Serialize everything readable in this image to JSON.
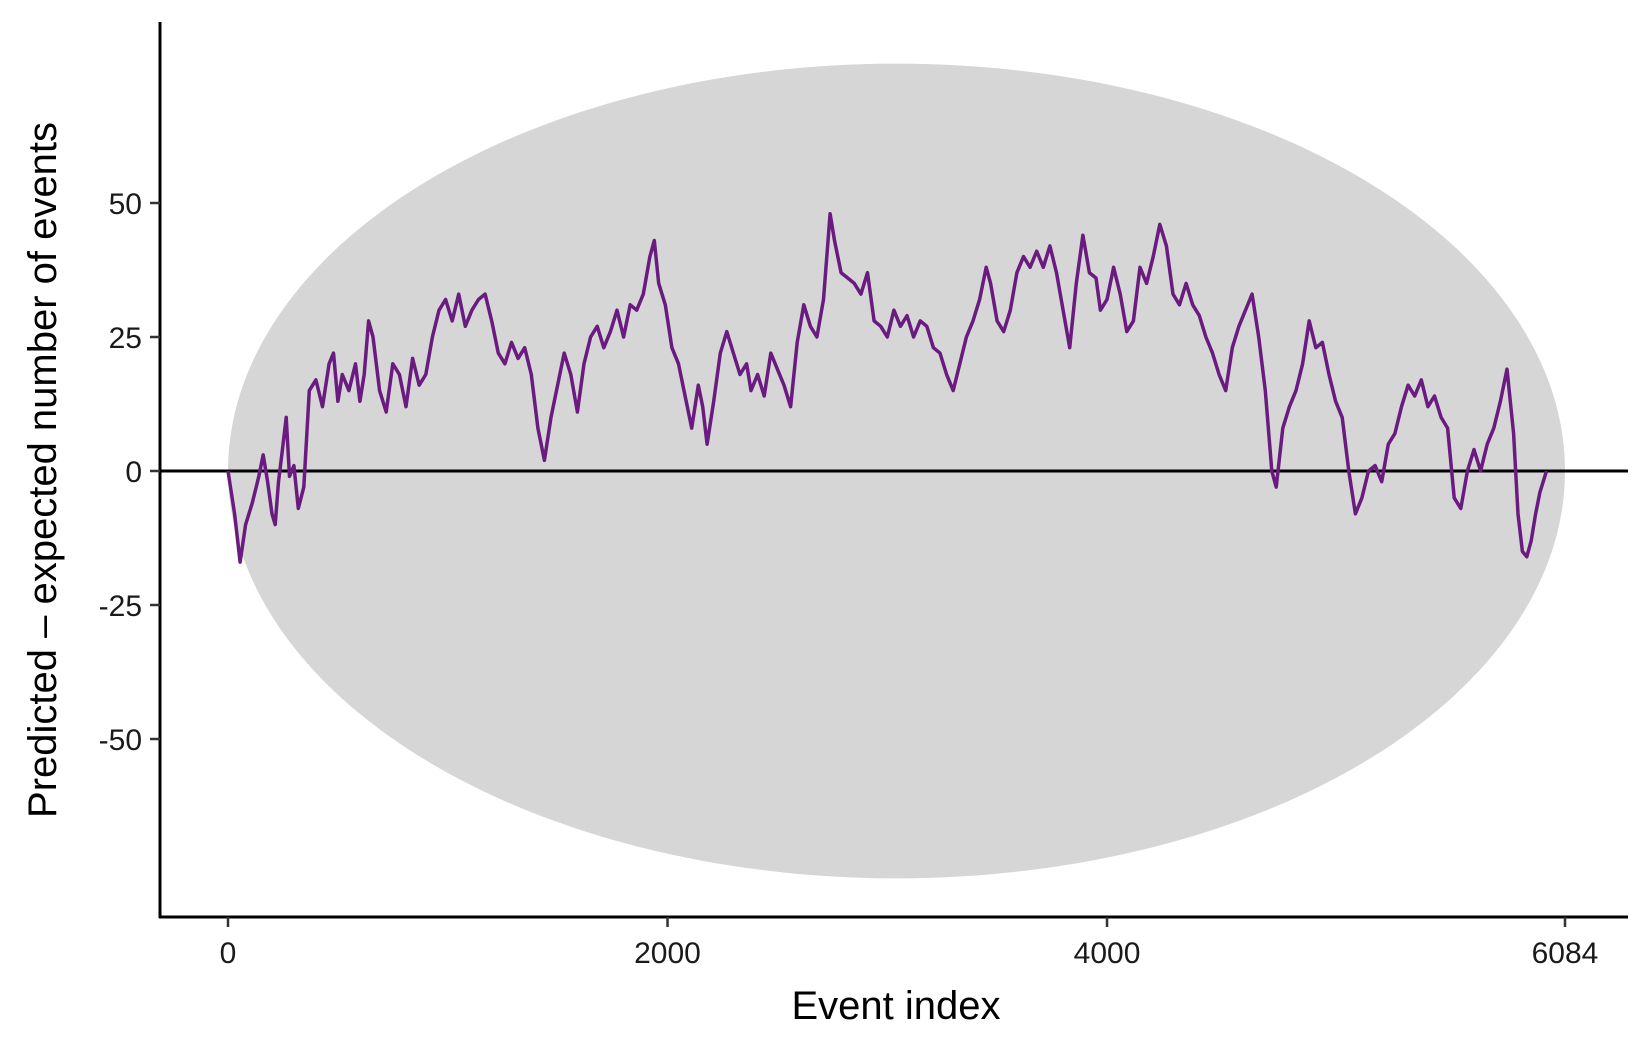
{
  "chart_data": {
    "type": "line",
    "xlabel": "Event index",
    "ylabel": "Predicted – expected number of events",
    "xlim": [
      -150,
      6084
    ],
    "ylim": [
      -84,
      84
    ],
    "x_ticks": [
      0,
      2000,
      4000,
      6084
    ],
    "x_tick_labels": [
      "0",
      "2000",
      "4000",
      "6084"
    ],
    "y_ticks": [
      -50,
      -25,
      0,
      25,
      50
    ],
    "y_tick_labels": [
      "-50",
      "-25",
      "0",
      "25",
      "50"
    ],
    "reference_line_y": 0,
    "confidence_region": {
      "shape": "ellipse",
      "x_range": [
        0,
        6084
      ],
      "y_range": [
        -76,
        76
      ]
    },
    "series": [
      {
        "color": "#6a1b7f",
        "points": [
          [
            0,
            0
          ],
          [
            30,
            -8
          ],
          [
            55,
            -17
          ],
          [
            80,
            -10
          ],
          [
            110,
            -6
          ],
          [
            140,
            -1
          ],
          [
            160,
            3
          ],
          [
            180,
            -2
          ],
          [
            200,
            -8
          ],
          [
            215,
            -10
          ],
          [
            230,
            -2
          ],
          [
            245,
            3
          ],
          [
            265,
            10
          ],
          [
            280,
            -1
          ],
          [
            300,
            1
          ],
          [
            320,
            -7
          ],
          [
            345,
            -3
          ],
          [
            370,
            15
          ],
          [
            400,
            17
          ],
          [
            430,
            12
          ],
          [
            460,
            20
          ],
          [
            480,
            22
          ],
          [
            500,
            13
          ],
          [
            520,
            18
          ],
          [
            550,
            15
          ],
          [
            580,
            20
          ],
          [
            600,
            13
          ],
          [
            620,
            18
          ],
          [
            640,
            28
          ],
          [
            660,
            25
          ],
          [
            690,
            15
          ],
          [
            720,
            11
          ],
          [
            750,
            20
          ],
          [
            780,
            18
          ],
          [
            810,
            12
          ],
          [
            840,
            21
          ],
          [
            870,
            16
          ],
          [
            900,
            18
          ],
          [
            930,
            25
          ],
          [
            960,
            30
          ],
          [
            990,
            32
          ],
          [
            1020,
            28
          ],
          [
            1050,
            33
          ],
          [
            1080,
            27
          ],
          [
            1110,
            30
          ],
          [
            1140,
            32
          ],
          [
            1170,
            33
          ],
          [
            1200,
            28
          ],
          [
            1230,
            22
          ],
          [
            1260,
            20
          ],
          [
            1290,
            24
          ],
          [
            1320,
            21
          ],
          [
            1350,
            23
          ],
          [
            1380,
            18
          ],
          [
            1410,
            8
          ],
          [
            1440,
            2
          ],
          [
            1470,
            10
          ],
          [
            1500,
            16
          ],
          [
            1530,
            22
          ],
          [
            1560,
            18
          ],
          [
            1590,
            11
          ],
          [
            1620,
            20
          ],
          [
            1650,
            25
          ],
          [
            1680,
            27
          ],
          [
            1710,
            23
          ],
          [
            1740,
            26
          ],
          [
            1770,
            30
          ],
          [
            1800,
            25
          ],
          [
            1830,
            31
          ],
          [
            1860,
            30
          ],
          [
            1890,
            33
          ],
          [
            1920,
            40
          ],
          [
            1940,
            43
          ],
          [
            1960,
            35
          ],
          [
            1990,
            31
          ],
          [
            2020,
            23
          ],
          [
            2050,
            20
          ],
          [
            2080,
            14
          ],
          [
            2110,
            8
          ],
          [
            2140,
            16
          ],
          [
            2160,
            12
          ],
          [
            2180,
            5
          ],
          [
            2210,
            13
          ],
          [
            2240,
            22
          ],
          [
            2270,
            26
          ],
          [
            2300,
            22
          ],
          [
            2330,
            18
          ],
          [
            2360,
            20
          ],
          [
            2380,
            15
          ],
          [
            2410,
            18
          ],
          [
            2440,
            14
          ],
          [
            2470,
            22
          ],
          [
            2500,
            19
          ],
          [
            2530,
            16
          ],
          [
            2560,
            12
          ],
          [
            2590,
            24
          ],
          [
            2620,
            31
          ],
          [
            2650,
            27
          ],
          [
            2680,
            25
          ],
          [
            2710,
            32
          ],
          [
            2740,
            48
          ],
          [
            2760,
            43
          ],
          [
            2790,
            37
          ],
          [
            2820,
            36
          ],
          [
            2850,
            35
          ],
          [
            2880,
            33
          ],
          [
            2910,
            37
          ],
          [
            2940,
            28
          ],
          [
            2970,
            27
          ],
          [
            3000,
            25
          ],
          [
            3030,
            30
          ],
          [
            3060,
            27
          ],
          [
            3090,
            29
          ],
          [
            3120,
            25
          ],
          [
            3150,
            28
          ],
          [
            3180,
            27
          ],
          [
            3210,
            23
          ],
          [
            3240,
            22
          ],
          [
            3270,
            18
          ],
          [
            3300,
            15
          ],
          [
            3330,
            20
          ],
          [
            3360,
            25
          ],
          [
            3390,
            28
          ],
          [
            3420,
            32
          ],
          [
            3450,
            38
          ],
          [
            3470,
            35
          ],
          [
            3500,
            28
          ],
          [
            3530,
            26
          ],
          [
            3560,
            30
          ],
          [
            3590,
            37
          ],
          [
            3620,
            40
          ],
          [
            3650,
            38
          ],
          [
            3680,
            41
          ],
          [
            3710,
            38
          ],
          [
            3740,
            42
          ],
          [
            3770,
            37
          ],
          [
            3800,
            30
          ],
          [
            3830,
            23
          ],
          [
            3860,
            35
          ],
          [
            3890,
            44
          ],
          [
            3920,
            37
          ],
          [
            3950,
            36
          ],
          [
            3970,
            30
          ],
          [
            4000,
            32
          ],
          [
            4030,
            38
          ],
          [
            4060,
            33
          ],
          [
            4090,
            26
          ],
          [
            4120,
            28
          ],
          [
            4150,
            38
          ],
          [
            4180,
            35
          ],
          [
            4210,
            40
          ],
          [
            4240,
            46
          ],
          [
            4270,
            42
          ],
          [
            4300,
            33
          ],
          [
            4330,
            31
          ],
          [
            4360,
            35
          ],
          [
            4390,
            31
          ],
          [
            4420,
            29
          ],
          [
            4450,
            25
          ],
          [
            4480,
            22
          ],
          [
            4510,
            18
          ],
          [
            4540,
            15
          ],
          [
            4570,
            23
          ],
          [
            4600,
            27
          ],
          [
            4630,
            30
          ],
          [
            4660,
            33
          ],
          [
            4690,
            25
          ],
          [
            4720,
            15
          ],
          [
            4750,
            0
          ],
          [
            4770,
            -3
          ],
          [
            4800,
            8
          ],
          [
            4830,
            12
          ],
          [
            4860,
            15
          ],
          [
            4890,
            20
          ],
          [
            4920,
            28
          ],
          [
            4950,
            23
          ],
          [
            4980,
            24
          ],
          [
            5010,
            18
          ],
          [
            5040,
            13
          ],
          [
            5070,
            10
          ],
          [
            5100,
            0
          ],
          [
            5130,
            -8
          ],
          [
            5160,
            -5
          ],
          [
            5190,
            0
          ],
          [
            5220,
            1
          ],
          [
            5250,
            -2
          ],
          [
            5280,
            5
          ],
          [
            5310,
            7
          ],
          [
            5340,
            12
          ],
          [
            5370,
            16
          ],
          [
            5400,
            14
          ],
          [
            5430,
            17
          ],
          [
            5460,
            12
          ],
          [
            5490,
            14
          ],
          [
            5520,
            10
          ],
          [
            5550,
            8
          ],
          [
            5580,
            -5
          ],
          [
            5610,
            -7
          ],
          [
            5640,
            0
          ],
          [
            5670,
            4
          ],
          [
            5700,
            0
          ],
          [
            5730,
            5
          ],
          [
            5760,
            8
          ],
          [
            5790,
            13
          ],
          [
            5820,
            19
          ],
          [
            5850,
            7
          ],
          [
            5870,
            -8
          ],
          [
            5890,
            -15
          ],
          [
            5910,
            -16
          ],
          [
            5930,
            -13
          ],
          [
            5950,
            -8
          ],
          [
            5970,
            -4
          ],
          [
            6000,
            0
          ]
        ]
      }
    ]
  }
}
